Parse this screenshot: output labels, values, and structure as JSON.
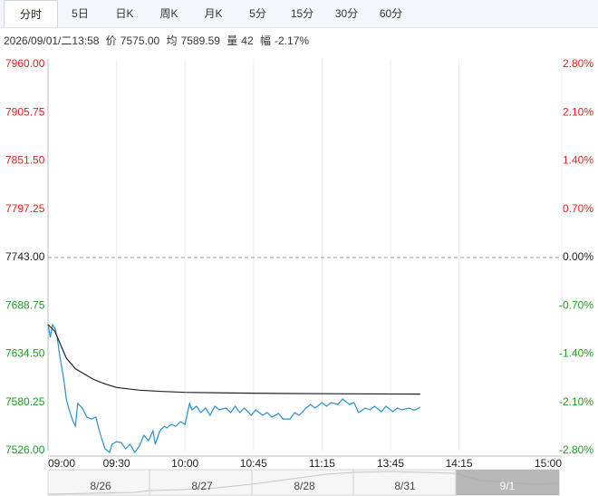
{
  "tabs": [
    "分时",
    "5日",
    "日K",
    "周K",
    "月K",
    "5分",
    "15分",
    "30分",
    "60分"
  ],
  "info": {
    "time": "2026/09/01/二13:58",
    "price_label": "价",
    "price": "7575.00",
    "avg_label": "均",
    "avg": "7589.59",
    "volume_label": "量",
    "volume": "42",
    "change_label": "幅",
    "change": "-2.17%"
  },
  "chart_data": {
    "type": "line",
    "xlim": [
      0,
      225
    ],
    "xticks": [
      {
        "value": 0,
        "label": "09:00"
      },
      {
        "value": 30,
        "label": "09:30"
      },
      {
        "value": 60,
        "label": "10:00"
      },
      {
        "value": 90,
        "label": "10:45"
      },
      {
        "value": 120,
        "label": "11:15"
      },
      {
        "value": 150,
        "label": "13:45"
      },
      {
        "value": 180,
        "label": "14:15"
      },
      {
        "value": 225,
        "label": "15:00"
      }
    ],
    "ylim": [
      7526,
      7960
    ],
    "yticks": [
      {
        "value": 7960,
        "label": "7960.00"
      },
      {
        "value": 7905.75,
        "label": "7905.75"
      },
      {
        "value": 7851.5,
        "label": "7851.50"
      },
      {
        "value": 7797.25,
        "label": "7797.25"
      },
      {
        "value": 7743,
        "label": "7743.00"
      },
      {
        "value": 7688.75,
        "label": "7688.75"
      },
      {
        "value": 7634.5,
        "label": "7634.50"
      },
      {
        "value": 7580.25,
        "label": "7580.25"
      },
      {
        "value": 7526,
        "label": "7526.00"
      }
    ],
    "y2lim": [
      -2.8,
      2.8
    ],
    "y2ticks": [
      {
        "value": 2.8,
        "label": "2.80%"
      },
      {
        "value": 2.1,
        "label": "2.10%"
      },
      {
        "value": 1.4,
        "label": "1.40%"
      },
      {
        "value": 0.7,
        "label": "0.70%"
      },
      {
        "value": 0,
        "label": "0.00%"
      },
      {
        "value": -0.7,
        "label": "-0.70%"
      },
      {
        "value": -1.4,
        "label": "-1.40%"
      },
      {
        "value": -2.1,
        "label": "-2.10%"
      },
      {
        "value": -2.8,
        "label": "-2.80%"
      }
    ],
    "up_color": "#e0201f",
    "down_color": "#1f9a1f",
    "series": [
      {
        "color": "#2a8fd0",
        "x": [
          0,
          1,
          2,
          3,
          4,
          5,
          7,
          8,
          9,
          11,
          12,
          13,
          15,
          17,
          19,
          21,
          22,
          23,
          25,
          27,
          28,
          30,
          32,
          34,
          36,
          38,
          40,
          42,
          44,
          46,
          47,
          49,
          51,
          52,
          54,
          56,
          58,
          60,
          62,
          63,
          65,
          67,
          69,
          71,
          73,
          75,
          78,
          80,
          82,
          84,
          86,
          89,
          91,
          94,
          96,
          98,
          101,
          103,
          106,
          108,
          110,
          113,
          115,
          117,
          120,
          122,
          124,
          127,
          129,
          132,
          134,
          136,
          139,
          141,
          143,
          146,
          148,
          151,
          153,
          155,
          158,
          160,
          161,
          163
        ],
        "values": [
          7667.6,
          7653.3,
          7667.6,
          7663.5,
          7653.3,
          7635.0,
          7604.4,
          7584.1,
          7573.9,
          7558.6,
          7553.5,
          7579.0,
          7573.9,
          7563.7,
          7561.6,
          7563.7,
          7553.5,
          7543.3,
          7528.0,
          7524.0,
          7533.1,
          7536.2,
          7535.2,
          7528.0,
          7533.1,
          7524.0,
          7531.1,
          7543.3,
          7537.2,
          7548.4,
          7533.1,
          7548.4,
          7553.5,
          7551.5,
          7555.5,
          7553.5,
          7558.6,
          7555.5,
          7579.0,
          7571.8,
          7575.9,
          7568.8,
          7573.9,
          7565.7,
          7575.9,
          7571.8,
          7573.9,
          7568.8,
          7575.9,
          7568.8,
          7573.9,
          7565.7,
          7571.8,
          7565.7,
          7568.8,
          7563.7,
          7567.8,
          7561.6,
          7561.6,
          7568.8,
          7565.7,
          7573.9,
          7577.9,
          7573.9,
          7580.0,
          7575.9,
          7580.0,
          7577.9,
          7584.1,
          7577.9,
          7580.0,
          7568.8,
          7573.9,
          7571.8,
          7575.9,
          7569.8,
          7575.9,
          7569.8,
          7573.9,
          7571.8,
          7573.9,
          7571.8,
          7571.8,
          7575.0
        ]
      },
      {
        "color": "#222222",
        "x": [
          0,
          3,
          5,
          8,
          12,
          16,
          20,
          25,
          30,
          40,
          50,
          60,
          80,
          100,
          130,
          163
        ],
        "values": [
          7667.6,
          7660,
          7648,
          7630,
          7618,
          7612,
          7606,
          7601,
          7597,
          7594,
          7592.5,
          7591.5,
          7590.8,
          7590.3,
          7589.9,
          7589.59
        ]
      }
    ]
  },
  "navigator": [
    "8/26",
    "8/27",
    "8/28",
    "8/31",
    "9/1"
  ]
}
